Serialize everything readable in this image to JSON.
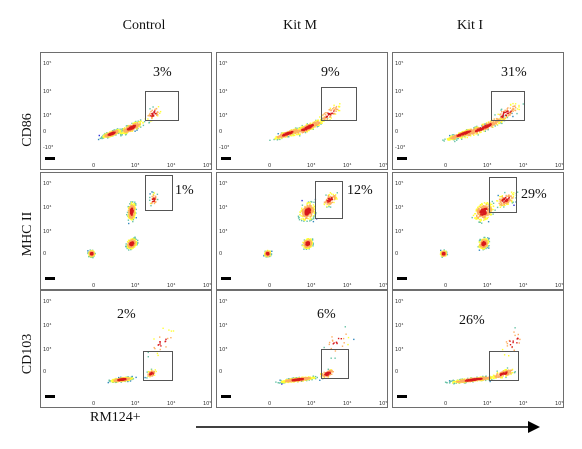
{
  "columns": [
    "Control",
    "Kit M",
    "Kit I"
  ],
  "rows": [
    "CD86",
    "MHC II",
    "CD103"
  ],
  "x_axis_label": "RM124+",
  "chart_data": [
    {
      "type": "scatter",
      "row": "CD86",
      "column": "Control",
      "gate_percent": "3%",
      "x_ticks": [
        "0",
        "10^3",
        "10^4",
        "10^5"
      ],
      "y_ticks": [
        "10^5",
        "10^4",
        "10^3",
        "0",
        "-10^3"
      ]
    },
    {
      "type": "scatter",
      "row": "CD86",
      "column": "Kit M",
      "gate_percent": "9%",
      "x_ticks": [
        "0",
        "10^3",
        "10^4",
        "10^5"
      ],
      "y_ticks": [
        "10^5",
        "10^4",
        "10^3",
        "0",
        "-10^3"
      ]
    },
    {
      "type": "scatter",
      "row": "CD86",
      "column": "Kit I",
      "gate_percent": "31%",
      "x_ticks": [
        "0",
        "10^3",
        "10^4",
        "10^5"
      ],
      "y_ticks": [
        "10^5",
        "10^4",
        "10^3",
        "0",
        "-10^3"
      ]
    },
    {
      "type": "scatter",
      "row": "MHC II",
      "column": "Control",
      "gate_percent": "1%",
      "x_ticks": [
        "0",
        "10^3",
        "10^4",
        "10^5"
      ],
      "y_ticks": [
        "10^5",
        "10^4",
        "10^3",
        "0"
      ]
    },
    {
      "type": "scatter",
      "row": "MHC II",
      "column": "Kit M",
      "gate_percent": "12%",
      "x_ticks": [
        "0",
        "10^3",
        "10^4",
        "10^5"
      ],
      "y_ticks": [
        "10^5",
        "10^4",
        "10^3",
        "0"
      ]
    },
    {
      "type": "scatter",
      "row": "MHC II",
      "column": "Kit I",
      "gate_percent": "29%",
      "x_ticks": [
        "0",
        "10^3",
        "10^4",
        "10^5"
      ],
      "y_ticks": [
        "10^5",
        "10^4",
        "10^3",
        "0"
      ]
    },
    {
      "type": "scatter",
      "row": "CD103",
      "column": "Control",
      "gate_percent": "2%",
      "x_ticks": [
        "0",
        "10^3",
        "10^4",
        "10^5"
      ],
      "y_ticks": [
        "10^5",
        "10^4",
        "10^3",
        "0"
      ]
    },
    {
      "type": "scatter",
      "row": "CD103",
      "column": "Kit M",
      "gate_percent": "6%",
      "x_ticks": [
        "0",
        "10^3",
        "10^4",
        "10^5"
      ],
      "y_ticks": [
        "10^5",
        "10^4",
        "10^3",
        "0"
      ]
    },
    {
      "type": "scatter",
      "row": "CD103",
      "column": "Kit I",
      "gate_percent": "26%",
      "x_ticks": [
        "0",
        "10^3",
        "10^4",
        "10^5"
      ],
      "y_ticks": [
        "10^5",
        "10^4",
        "10^3",
        "0"
      ]
    }
  ]
}
